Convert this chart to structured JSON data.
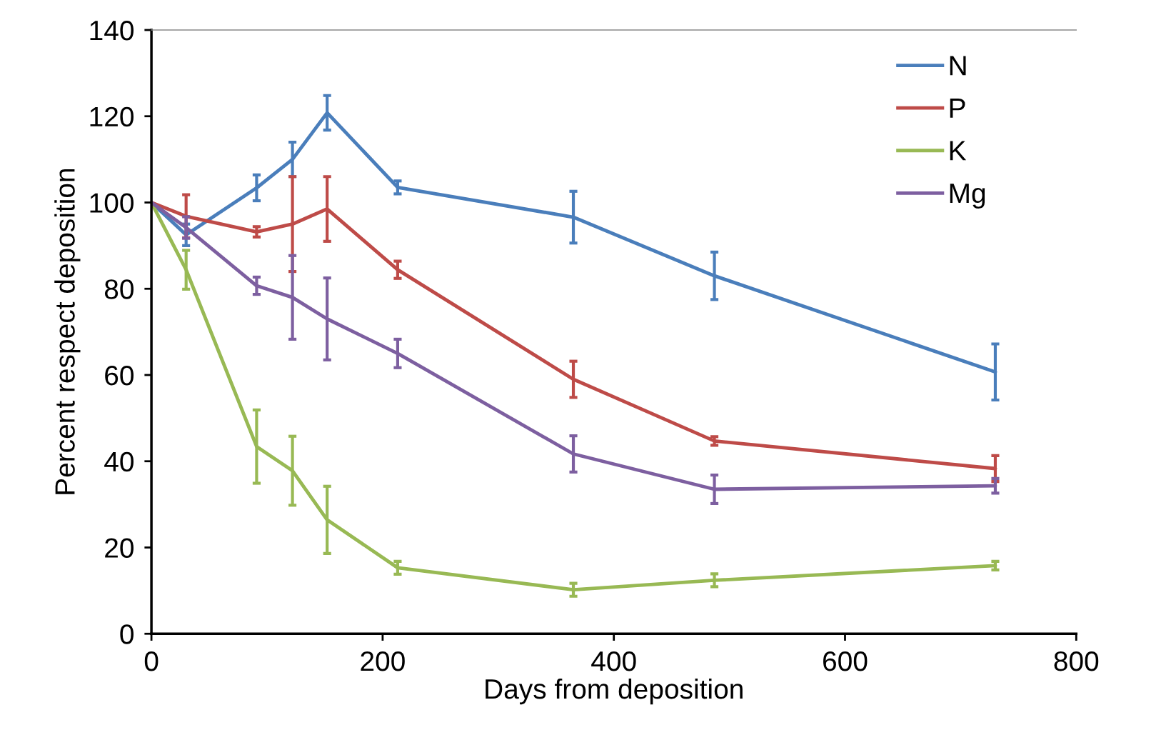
{
  "chart_data": {
    "type": "line",
    "xlabel": "Days from deposition",
    "ylabel": "Percent respect deposition",
    "x": [
      0,
      30,
      91,
      122,
      152,
      213,
      365,
      487,
      730
    ],
    "xlim": [
      0,
      800
    ],
    "xticks": [
      0,
      200,
      400,
      600,
      800
    ],
    "ylim": [
      0,
      140
    ],
    "yticks": [
      0,
      20,
      40,
      60,
      80,
      100,
      120,
      140
    ],
    "grid": false,
    "legend": "top right",
    "marker": "none",
    "line_style": "solid",
    "series": [
      {
        "name": "N",
        "color": "#4a7ebb",
        "values": [
          100,
          92.5,
          103.4,
          110,
          120.8,
          103.5,
          96.6,
          83,
          60.7
        ],
        "errors": [
          null,
          2.5,
          3,
          4,
          4,
          1.5,
          6,
          5.5,
          6.5
        ]
      },
      {
        "name": "P",
        "color": "#be4b48",
        "values": [
          100,
          96.8,
          93.2,
          95,
          98.5,
          84.4,
          59,
          44.7,
          38.3
        ],
        "errors": [
          null,
          5,
          1.2,
          11,
          7.5,
          2,
          4.2,
          1,
          3
        ]
      },
      {
        "name": "K",
        "color": "#98b954",
        "values": [
          100,
          84.4,
          43.4,
          37.8,
          26.4,
          15.3,
          10.2,
          12.4,
          15.8
        ],
        "errors": [
          null,
          4.5,
          8.5,
          8,
          7.8,
          1.5,
          1.5,
          1.5,
          1
        ]
      },
      {
        "name": "Mg",
        "color": "#7d5fa0",
        "values": [
          100,
          94.2,
          80.7,
          78,
          73,
          65,
          41.7,
          33.5,
          34.3
        ],
        "errors": [
          null,
          2.5,
          2,
          9.7,
          9.5,
          3.3,
          4.2,
          3.3,
          1.7
        ]
      }
    ]
  }
}
